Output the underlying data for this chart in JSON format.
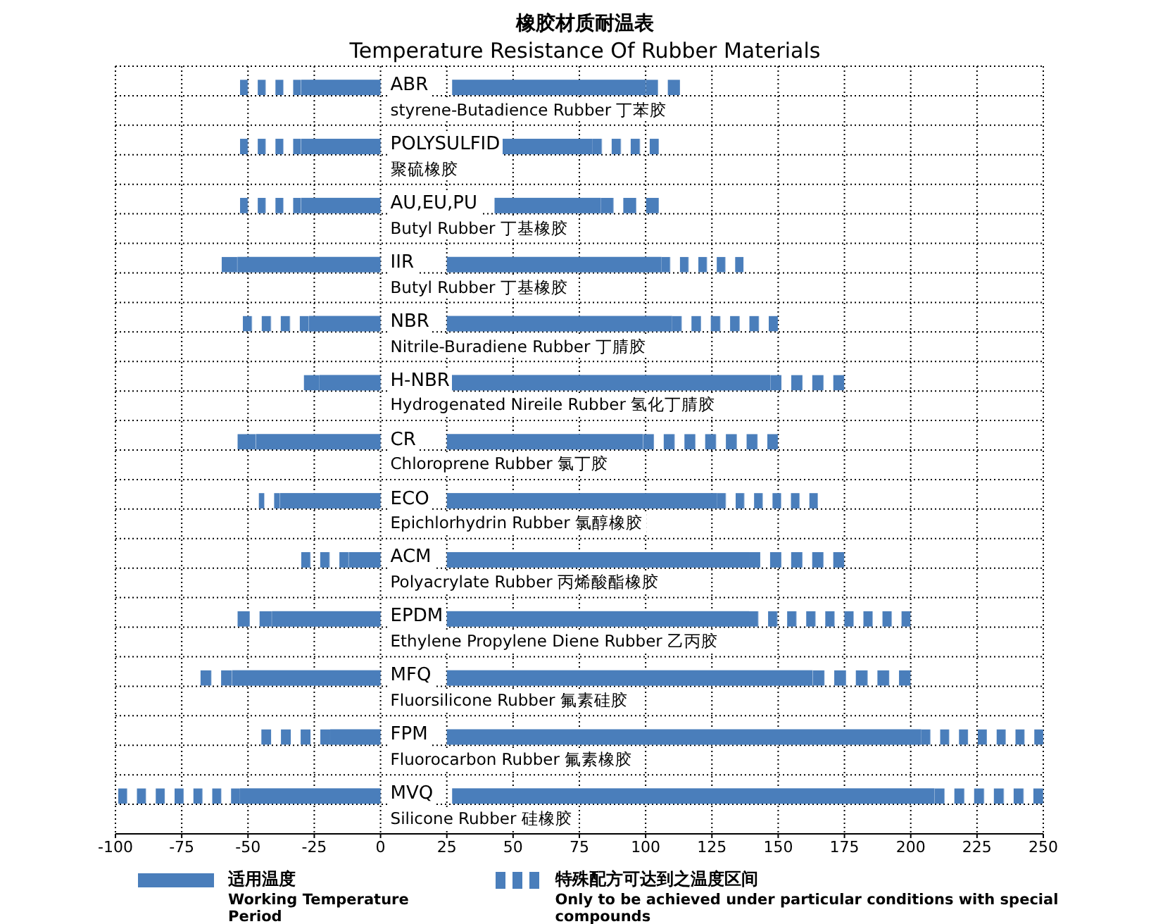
{
  "chart_data": {
    "type": "bar",
    "orientation": "horizontal",
    "title": "橡胶材质耐温表",
    "subtitle": "Temperature Resistance Of Rubber Materials",
    "categories": [
      "ABR\nstyrene-Butadience Rubber 丁苯胶",
      "POLYSULFID\n聚硫橡胶",
      "AU,EU,PU\nButyl Rubber 丁基橡胶",
      "IIR\nButyl Rubber 丁基橡胶",
      "NBR\nNitrile-Buradiene Rubber 丁腈胶",
      "H-NBR\nHydrogenated Nireile Rubber 氢化丁腈胶",
      "CR\nChloroprene Rubber 氯丁胶",
      "ECO\nEpichlorhydrin Rubber 氯醇橡胶",
      "ACM\nPolyacrylate Rubber 丙烯酸酯橡胶",
      "EPDM\nEthylene Propylene Diene Rubber 乙丙胶",
      "MFQ\nFluorsilicone Rubber 氟素硅胶",
      "FPM\nFluorocarbon Rubber 氟素橡胶",
      "MVQ\nSilicone Rubber 硅橡胶"
    ],
    "series": [
      {
        "color": "#4a7ebb",
        "line_style": "dashed",
        "base": [
          -53,
          -53,
          -53,
          -60,
          -52,
          -29,
          -54,
          -46,
          -30,
          -54,
          -68,
          -45,
          -99
        ],
        "values": [
          23,
          23,
          23,
          6,
          25,
          6,
          7,
          8,
          18,
          13,
          12,
          26,
          46
        ]
      },
      {
        "color": "#4a7ebb",
        "line_style": "solid",
        "base": [
          -30,
          -30,
          -30,
          -54,
          -27,
          -23,
          -47,
          -38,
          -12,
          -41,
          -56,
          -19,
          -53
        ],
        "values": [
          30,
          30,
          30,
          54,
          27,
          23,
          47,
          38,
          12,
          41,
          56,
          19,
          53
        ]
      },
      {
        "name": "适用温度\nWorking Temperature Period",
        "color": "#4a7ebb",
        "line_style": "solid",
        "base": [
          27,
          42,
          43,
          25,
          25,
          25,
          25,
          25,
          25,
          25,
          25,
          25,
          27
        ],
        "values": [
          73,
          38,
          40,
          81,
          85,
          122,
          74,
          102,
          114,
          114,
          138,
          179,
          182
        ]
      },
      {
        "name": "特殊配方可达到之温度区间\nOnly to be achieved under particular conditions with special compounds",
        "color": "#4a7ebb",
        "line_style": "dashed",
        "base": [
          100,
          80,
          83,
          106,
          110,
          147,
          99,
          127,
          139,
          139,
          163,
          204,
          209
        ],
        "values": [
          13,
          25,
          22,
          31,
          40,
          28,
          51,
          38,
          36,
          61,
          37,
          46,
          41
        ]
      }
    ],
    "xlim": [
      -100,
      250
    ],
    "xticks": [
      -100,
      -75,
      -50,
      -25,
      0,
      25,
      50,
      75,
      100,
      125,
      150,
      175,
      200,
      225,
      250
    ],
    "grid": true,
    "legend": "bottom"
  }
}
